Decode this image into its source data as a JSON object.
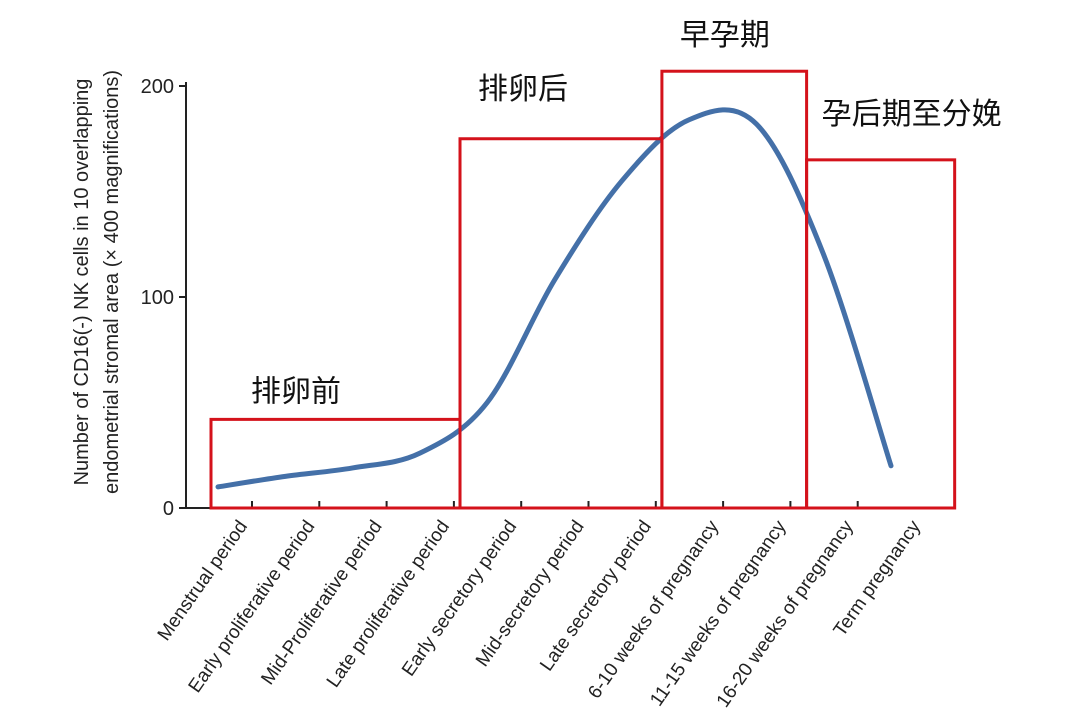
{
  "chart_data": {
    "type": "line",
    "ylabel": "Number of CD16(-) NK cells in 10 overlapping endometrial stromal area (× 400 magnifications)",
    "ylabel_lines": [
      "Number of CD16(-) NK cells in 10 overlapping",
      "endometrial stromal area (× 400 magnifications)"
    ],
    "xlabel": "",
    "ylim": [
      0,
      200
    ],
    "y_ticks": [
      "0",
      "100",
      "200"
    ],
    "y_tick_values": [
      0,
      100,
      200
    ],
    "grid": false,
    "categories": [
      "Menstrual period",
      "Early proliferative period",
      "Mid-Proliferative period",
      "Late proliferative period",
      "Early secretory period",
      "Mid-secretory period",
      "Late secretory period",
      "6-10 weeks of pregnancy",
      "11-15 weeks of pregnancy",
      "16-20 weeks of pregnancy",
      "Term pregnancy"
    ],
    "series": [
      {
        "values": [
          10,
          15,
          19,
          26,
          50,
          108,
          155,
          184,
          182,
          120,
          20
        ],
        "color": "#4470a8"
      }
    ],
    "regions": [
      {
        "label": "排卵前",
        "x_start": 0,
        "x_end": 3.7,
        "height": 42
      },
      {
        "label": "排卵后",
        "x_start": 3.7,
        "x_end": 6.7,
        "height": 175
      },
      {
        "label": "早孕期",
        "x_start": 6.7,
        "x_end": 8.85,
        "height": 207
      },
      {
        "label": "孕后期至分娩",
        "x_start": 8.85,
        "x_end": 11.05,
        "height": 165
      }
    ],
    "region_color": "#d4121b"
  }
}
